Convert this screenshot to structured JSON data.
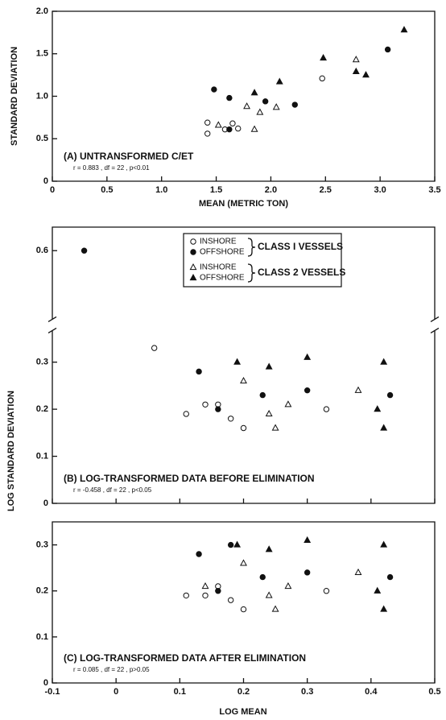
{
  "chart_data": [
    {
      "type": "scatter",
      "annotation": "(A) UNTRANSFORMED C/ET",
      "stats": "r = 0.883 ,  df = 22 ,  p<0.01",
      "xlabel": "MEAN (METRIC TON)",
      "ylabel": "STANDARD DEVIATION",
      "xlim": [
        0,
        3.5
      ],
      "ylim": [
        0,
        2.0
      ],
      "xticks": [
        0,
        0.5,
        {
          "value": 1,
          "label": "1.0"
        },
        1.5,
        {
          "value": 2,
          "label": "2.0"
        },
        2.5,
        {
          "value": 3,
          "label": "3.0"
        },
        3.5
      ],
      "yticks": [
        0,
        0.5,
        {
          "value": 1,
          "label": "1.0"
        },
        1.5,
        {
          "value": 2,
          "label": "2.0"
        }
      ],
      "series": [
        {
          "color": "#111111",
          "marker": "circle",
          "filled": false,
          "x": [
            1.42,
            1.42,
            1.58,
            1.65,
            1.7,
            2.47
          ],
          "values": [
            0.69,
            0.56,
            0.61,
            0.68,
            0.62,
            1.21
          ]
        },
        {
          "color": "#111111",
          "marker": "circle",
          "filled": true,
          "x": [
            1.48,
            1.62,
            1.62,
            1.95,
            2.22,
            3.07
          ],
          "values": [
            1.08,
            0.98,
            0.61,
            0.94,
            0.9,
            1.55
          ]
        },
        {
          "color": "#111111",
          "marker": "triangle",
          "filled": false,
          "x": [
            1.52,
            1.78,
            1.85,
            1.9,
            2.05,
            2.78
          ],
          "values": [
            0.66,
            0.88,
            0.61,
            0.81,
            0.87,
            1.43
          ]
        },
        {
          "color": "#111111",
          "marker": "triangle",
          "filled": true,
          "x": [
            1.85,
            2.08,
            2.48,
            2.78,
            2.87,
            3.22
          ],
          "values": [
            1.04,
            1.17,
            1.45,
            1.29,
            1.25,
            1.78
          ]
        }
      ]
    },
    {
      "type": "scatter",
      "annotation": "(B) LOG-TRANSFORMED DATA BEFORE ELIMINATION",
      "stats": "r = -0.458 ,  df = 22 ,  p<0.05",
      "xlim": [
        -0.1,
        0.5
      ],
      "ylim": [
        0,
        0.65
      ],
      "axis_break": [
        0.35,
        0.55
      ],
      "xticks": [
        -0.1,
        0,
        0.1,
        0.2,
        0.3,
        0.4,
        0.5
      ],
      "xtick_labels": false,
      "yticks": [
        0,
        0.1,
        0.2,
        0.3,
        0.6
      ],
      "legend": true,
      "series": [
        {
          "name": "INSHORE",
          "group": "CLASS I VESSELS",
          "color": "#111111",
          "marker": "circle",
          "filled": false,
          "x": [
            0.06,
            0.11,
            0.14,
            0.16,
            0.18,
            0.2,
            0.33
          ],
          "values": [
            0.33,
            0.19,
            0.21,
            0.21,
            0.18,
            0.16,
            0.2
          ]
        },
        {
          "name": "OFFSHORE",
          "group": "CLASS I VESSELS",
          "color": "#111111",
          "marker": "circle",
          "filled": true,
          "x": [
            -0.05,
            0.13,
            0.16,
            0.23,
            0.3,
            0.43
          ],
          "values": [
            0.6,
            0.28,
            0.2,
            0.23,
            0.24,
            0.23
          ]
        },
        {
          "name": "INSHORE",
          "group": "CLASS 2 VESSELS",
          "color": "#111111",
          "marker": "triangle",
          "filled": false,
          "x": [
            0.2,
            0.24,
            0.25,
            0.27,
            0.38
          ],
          "values": [
            0.26,
            0.19,
            0.16,
            0.21,
            0.24
          ]
        },
        {
          "name": "OFFSHORE",
          "group": "CLASS 2 VESSELS",
          "color": "#111111",
          "marker": "triangle",
          "filled": true,
          "x": [
            0.19,
            0.24,
            0.3,
            0.41,
            0.42,
            0.42
          ],
          "values": [
            0.3,
            0.29,
            0.31,
            0.2,
            0.3,
            0.16
          ]
        }
      ]
    },
    {
      "type": "scatter",
      "annotation": "(C) LOG-TRANSFORMED DATA AFTER ELIMINATION",
      "stats": "r = 0.085 ,  df = 22 ,  p>0.05",
      "xlim": [
        -0.1,
        0.5
      ],
      "ylim": [
        0,
        0.35
      ],
      "xticks": [
        -0.1,
        0,
        0.1,
        0.2,
        0.3,
        0.4,
        0.5
      ],
      "yticks": [
        0,
        0.1,
        0.2,
        0.3
      ],
      "series": [
        {
          "color": "#111111",
          "marker": "circle",
          "filled": false,
          "x": [
            0.11,
            0.14,
            0.16,
            0.18,
            0.2,
            0.33
          ],
          "values": [
            0.19,
            0.19,
            0.21,
            0.18,
            0.16,
            0.2
          ]
        },
        {
          "color": "#111111",
          "marker": "circle",
          "filled": true,
          "x": [
            0.13,
            0.16,
            0.18,
            0.23,
            0.3,
            0.43
          ],
          "values": [
            0.28,
            0.2,
            0.3,
            0.23,
            0.24,
            0.23
          ]
        },
        {
          "color": "#111111",
          "marker": "triangle",
          "filled": false,
          "x": [
            0.14,
            0.2,
            0.24,
            0.25,
            0.27,
            0.38
          ],
          "values": [
            0.21,
            0.26,
            0.19,
            0.16,
            0.21,
            0.24
          ]
        },
        {
          "color": "#111111",
          "marker": "triangle",
          "filled": true,
          "x": [
            0.19,
            0.24,
            0.3,
            0.41,
            0.42,
            0.42
          ],
          "values": [
            0.3,
            0.29,
            0.31,
            0.2,
            0.3,
            0.16
          ]
        }
      ]
    }
  ],
  "shared_axes": {
    "ylabel": "LOG STANDARD DEVIATION",
    "xlabel": "LOG MEAN"
  }
}
